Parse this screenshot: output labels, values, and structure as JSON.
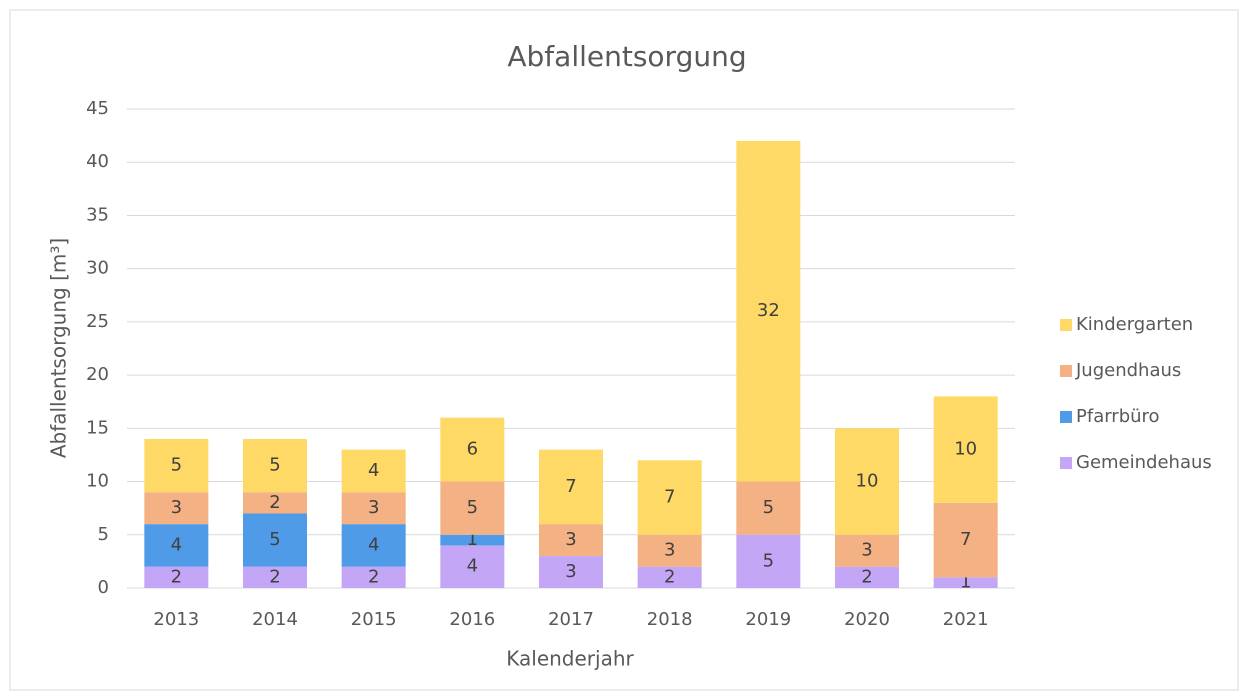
{
  "chart_data": {
    "type": "stacked_bar",
    "title": "Abfallentsorgung",
    "x_label": "Kalenderjahr",
    "y_label": "Abfallentsorgung [m³]",
    "categories": [
      "2013",
      "2014",
      "2015",
      "2016",
      "2017",
      "2018",
      "2019",
      "2020",
      "2021"
    ],
    "series": [
      {
        "name": "Gemeindehaus",
        "color": "#c4a6f7",
        "values": [
          2,
          2,
          2,
          4,
          3,
          2,
          5,
          2,
          1
        ]
      },
      {
        "name": "Pfarrbüro",
        "color": "#4f9be8",
        "values": [
          4,
          5,
          4,
          1,
          null,
          null,
          null,
          null,
          null
        ]
      },
      {
        "name": "Jugendhaus",
        "color": "#f4b183",
        "values": [
          3,
          2,
          3,
          5,
          3,
          3,
          5,
          3,
          7
        ]
      },
      {
        "name": "Kindergarten",
        "color": "#ffd966",
        "values": [
          5,
          5,
          4,
          6,
          7,
          7,
          32,
          10,
          10
        ]
      }
    ],
    "ylim": [
      0,
      45
    ],
    "yticks": [
      0,
      5,
      10,
      15,
      20,
      25,
      30,
      35,
      40,
      45
    ],
    "grid": true,
    "legend": "right"
  }
}
